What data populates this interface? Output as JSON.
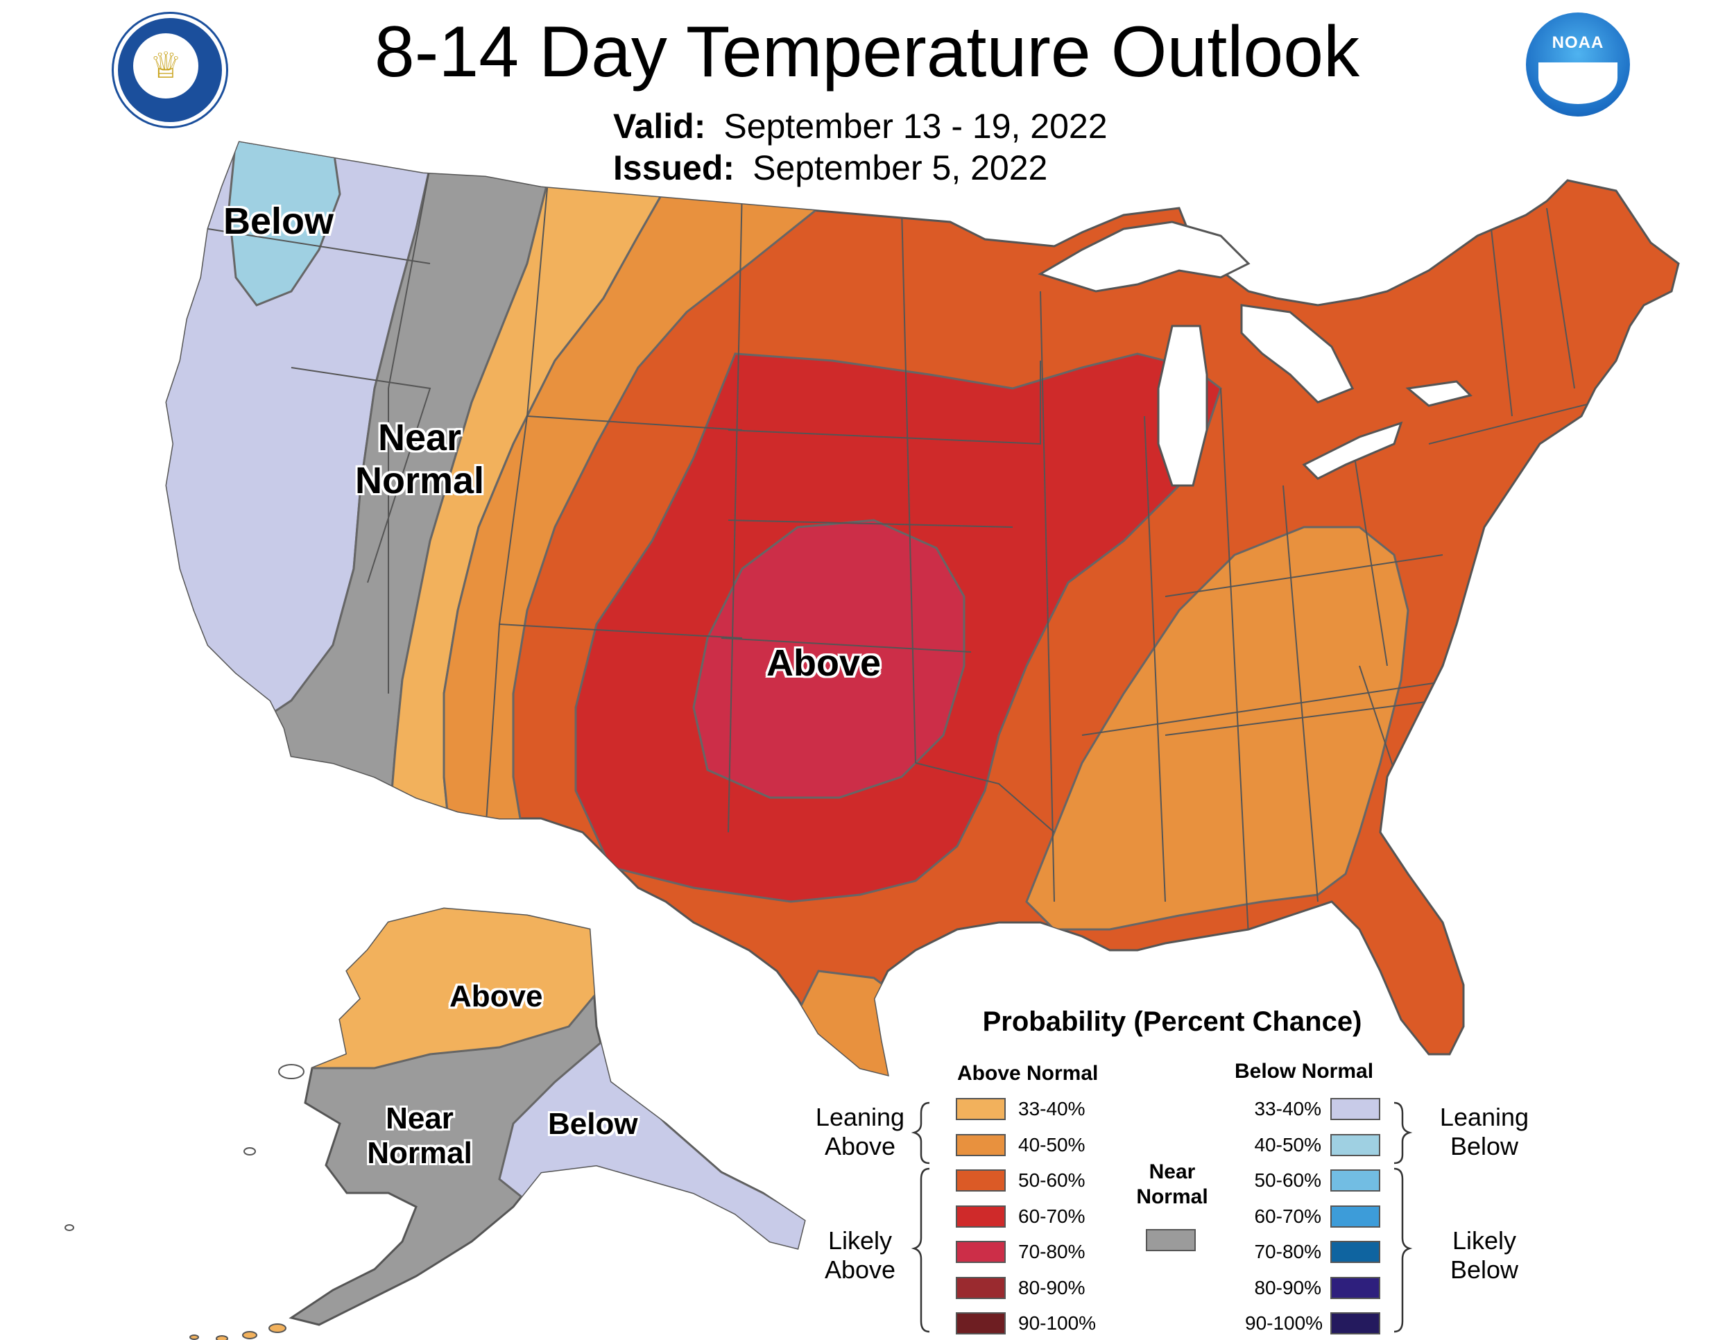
{
  "header": {
    "title": "8-14 Day Temperature Outlook",
    "valid_label": "Valid:",
    "valid_value": "September 13 - 19, 2022",
    "issued_label": "Issued:",
    "issued_value": "September 5, 2022"
  },
  "logos": {
    "left": "department-of-commerce-seal",
    "right": "noaa-logo",
    "right_text": "NOAA"
  },
  "map_labels": {
    "below_nw": "Below",
    "near_normal_line1": "Near",
    "near_normal_line2": "Normal",
    "above_central": "Above",
    "ak_above": "Above",
    "ak_near_line1": "Near",
    "ak_near_line2": "Normal",
    "ak_below": "Below"
  },
  "legend": {
    "title": "Probability (Percent Chance)",
    "above_head": "Above Normal",
    "below_head": "Below Normal",
    "near_head_line1": "Near",
    "near_head_line2": "Normal",
    "leaning_above_line1": "Leaning",
    "leaning_above_line2": "Above",
    "likely_above_line1": "Likely",
    "likely_above_line2": "Above",
    "leaning_below_line1": "Leaning",
    "leaning_below_line2": "Below",
    "likely_below_line1": "Likely",
    "likely_below_line2": "Below",
    "above": [
      {
        "label": "33-40%",
        "color": "#f2b15c"
      },
      {
        "label": "40-50%",
        "color": "#e8913e"
      },
      {
        "label": "50-60%",
        "color": "#db5a26"
      },
      {
        "label": "60-70%",
        "color": "#cf2a2a"
      },
      {
        "label": "70-80%",
        "color": "#cc2e48"
      },
      {
        "label": "80-90%",
        "color": "#9a2a2f"
      },
      {
        "label": "90-100%",
        "color": "#6e1e22"
      }
    ],
    "near_color": "#9b9b9b",
    "below": [
      {
        "label": "33-40%",
        "color": "#c8cbe8"
      },
      {
        "label": "40-50%",
        "color": "#9fd0e2"
      },
      {
        "label": "50-60%",
        "color": "#72bde3"
      },
      {
        "label": "60-70%",
        "color": "#3d9cd9"
      },
      {
        "label": "70-80%",
        "color": "#0f64a0"
      },
      {
        "label": "80-90%",
        "color": "#2e1f7d"
      },
      {
        "label": "90-100%",
        "color": "#241a5e"
      }
    ]
  }
}
